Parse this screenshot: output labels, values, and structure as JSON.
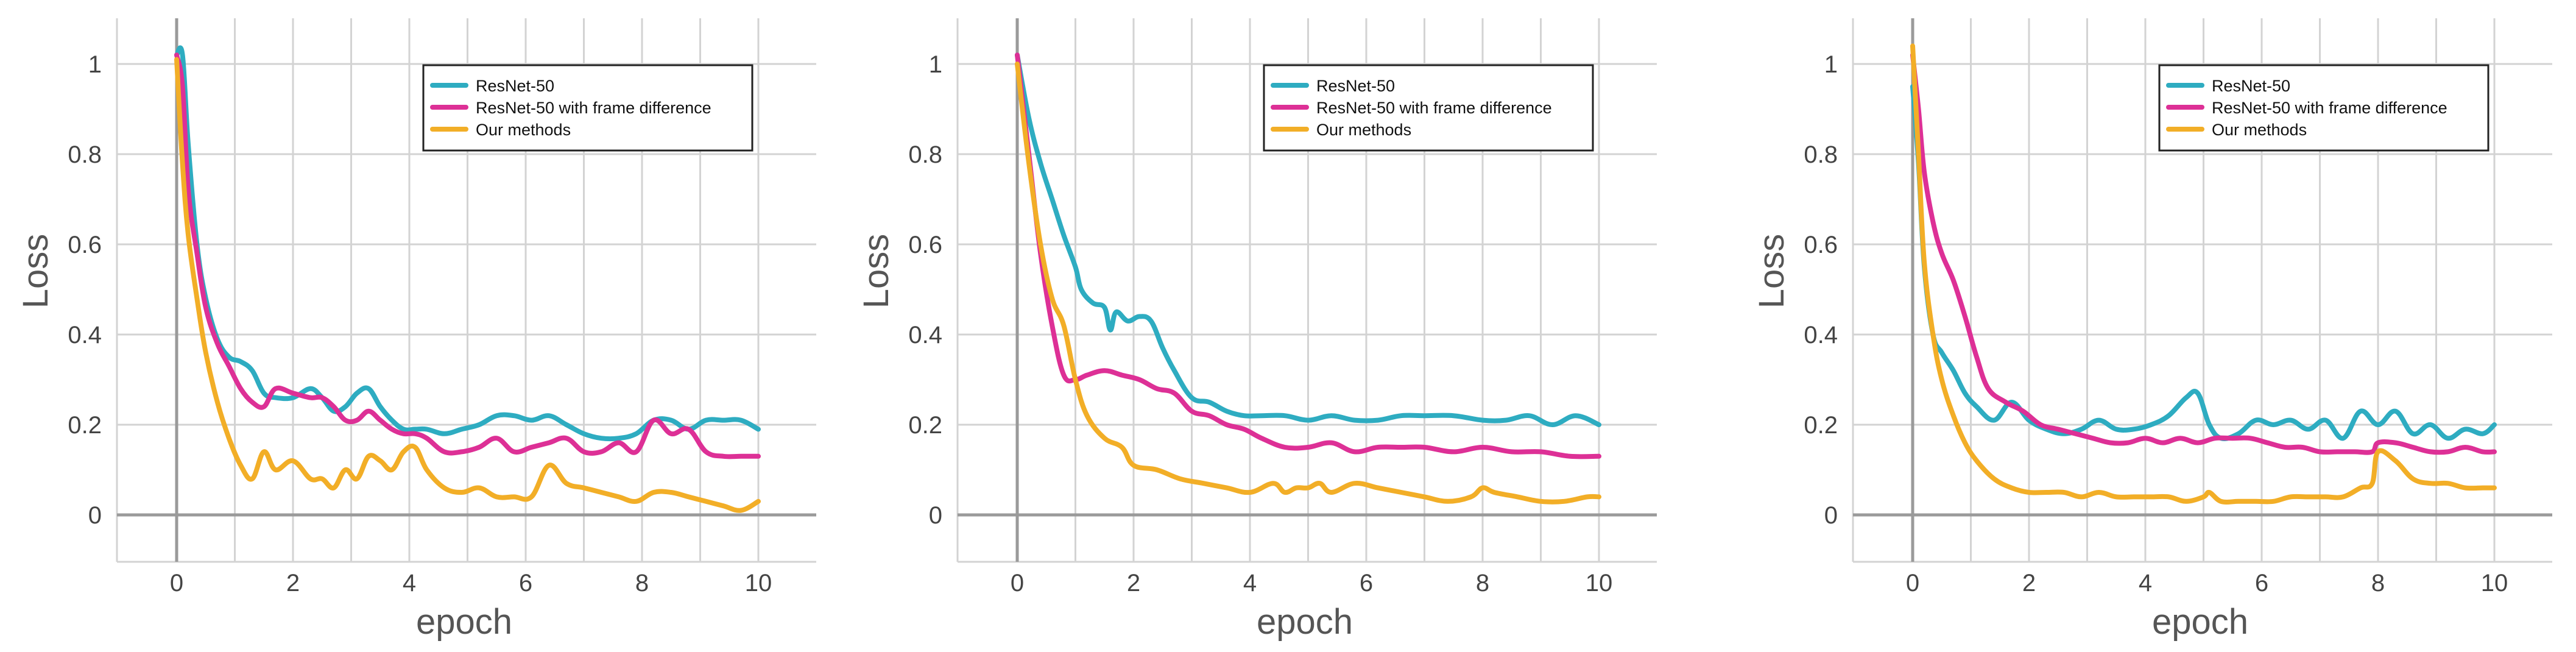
{
  "colors": {
    "ResNet-50": "#2eacc1",
    "ResNet-50 with frame difference": "#dd3096",
    "Our methods": "#f2ae27"
  },
  "chart_data": [
    {
      "type": "line",
      "title": "",
      "xlabel": "epoch",
      "ylabel": "Loss",
      "xlim": [
        -1,
        11
      ],
      "ylim": [
        -0.1,
        1.1
      ],
      "xticks": [
        0,
        2,
        4,
        6,
        8,
        10
      ],
      "yticks": [
        0,
        0.2,
        0.4,
        0.6,
        0.8,
        1
      ],
      "ytick_labels": [
        "0",
        "0.2",
        "0.4",
        "0.6",
        "0.8",
        "1"
      ],
      "legend_position": "top-right",
      "series": [
        {
          "name": "ResNet-50",
          "x": [
            0,
            0.1,
            0.2,
            0.35,
            0.5,
            0.7,
            0.9,
            1.1,
            1.3,
            1.5,
            1.7,
            2.0,
            2.3,
            2.5,
            2.7,
            2.9,
            3.1,
            3.3,
            3.5,
            3.7,
            3.9,
            4.1,
            4.3,
            4.6,
            4.9,
            5.2,
            5.5,
            5.8,
            6.1,
            6.4,
            6.7,
            7.0,
            7.3,
            7.6,
            7.9,
            8.2,
            8.5,
            8.8,
            9.1,
            9.4,
            9.7,
            10.0
          ],
          "y": [
            1.02,
            1.02,
            0.82,
            0.6,
            0.48,
            0.39,
            0.35,
            0.34,
            0.32,
            0.27,
            0.26,
            0.26,
            0.28,
            0.26,
            0.23,
            0.24,
            0.27,
            0.28,
            0.24,
            0.21,
            0.19,
            0.19,
            0.19,
            0.18,
            0.19,
            0.2,
            0.22,
            0.22,
            0.21,
            0.22,
            0.2,
            0.18,
            0.17,
            0.17,
            0.18,
            0.21,
            0.21,
            0.19,
            0.21,
            0.21,
            0.21,
            0.19
          ]
        },
        {
          "name": "ResNet-50 with frame difference",
          "x": [
            0,
            0.1,
            0.2,
            0.35,
            0.5,
            0.7,
            0.9,
            1.1,
            1.3,
            1.5,
            1.7,
            2.0,
            2.3,
            2.5,
            2.7,
            2.9,
            3.1,
            3.3,
            3.5,
            3.7,
            3.9,
            4.1,
            4.3,
            4.6,
            4.9,
            5.2,
            5.5,
            5.8,
            6.1,
            6.4,
            6.7,
            7.0,
            7.3,
            7.6,
            7.9,
            8.2,
            8.5,
            8.8,
            9.1,
            9.4,
            9.7,
            10.0
          ],
          "y": [
            1.02,
            0.95,
            0.72,
            0.58,
            0.46,
            0.38,
            0.33,
            0.28,
            0.25,
            0.24,
            0.28,
            0.27,
            0.26,
            0.26,
            0.24,
            0.21,
            0.21,
            0.23,
            0.21,
            0.19,
            0.18,
            0.18,
            0.17,
            0.14,
            0.14,
            0.15,
            0.17,
            0.14,
            0.15,
            0.16,
            0.17,
            0.14,
            0.14,
            0.16,
            0.14,
            0.21,
            0.18,
            0.19,
            0.14,
            0.13,
            0.13,
            0.13
          ]
        },
        {
          "name": "Our methods",
          "x": [
            0,
            0.1,
            0.2,
            0.35,
            0.5,
            0.7,
            0.9,
            1.1,
            1.3,
            1.5,
            1.7,
            2.0,
            2.3,
            2.5,
            2.7,
            2.9,
            3.1,
            3.3,
            3.5,
            3.7,
            3.9,
            4.1,
            4.3,
            4.6,
            4.9,
            5.2,
            5.5,
            5.8,
            6.1,
            6.4,
            6.7,
            7.0,
            7.3,
            7.6,
            7.9,
            8.2,
            8.5,
            8.8,
            9.1,
            9.4,
            9.7,
            10.0
          ],
          "y": [
            1.01,
            0.78,
            0.62,
            0.48,
            0.36,
            0.25,
            0.17,
            0.11,
            0.08,
            0.14,
            0.1,
            0.12,
            0.08,
            0.08,
            0.06,
            0.1,
            0.08,
            0.13,
            0.12,
            0.1,
            0.14,
            0.15,
            0.1,
            0.06,
            0.05,
            0.06,
            0.04,
            0.04,
            0.04,
            0.11,
            0.07,
            0.06,
            0.05,
            0.04,
            0.03,
            0.05,
            0.05,
            0.04,
            0.03,
            0.02,
            0.01,
            0.03
          ]
        }
      ]
    },
    {
      "type": "line",
      "title": "",
      "xlabel": "epoch",
      "ylabel": "Loss",
      "xlim": [
        -1,
        11
      ],
      "ylim": [
        -0.1,
        1.1
      ],
      "xticks": [
        0,
        2,
        4,
        6,
        8,
        10
      ],
      "yticks": [
        0,
        0.2,
        0.4,
        0.6,
        0.8,
        1
      ],
      "ytick_labels": [
        "0",
        "0.2",
        "0.4",
        "0.6",
        "0.8",
        "1"
      ],
      "legend_position": "top-right",
      "series": [
        {
          "name": "ResNet-50",
          "x": [
            0,
            0.2,
            0.4,
            0.6,
            0.8,
            1.0,
            1.1,
            1.3,
            1.5,
            1.6,
            1.7,
            1.9,
            2.1,
            2.3,
            2.5,
            2.7,
            3.0,
            3.3,
            3.6,
            3.9,
            4.2,
            4.6,
            5.0,
            5.4,
            5.8,
            6.2,
            6.6,
            7.0,
            7.5,
            8.0,
            8.4,
            8.8,
            9.2,
            9.6,
            10.0
          ],
          "y": [
            1.02,
            0.88,
            0.78,
            0.7,
            0.62,
            0.55,
            0.5,
            0.47,
            0.46,
            0.41,
            0.45,
            0.43,
            0.44,
            0.43,
            0.37,
            0.32,
            0.26,
            0.25,
            0.23,
            0.22,
            0.22,
            0.22,
            0.21,
            0.22,
            0.21,
            0.21,
            0.22,
            0.22,
            0.22,
            0.21,
            0.21,
            0.22,
            0.2,
            0.22,
            0.2
          ]
        },
        {
          "name": "ResNet-50 with frame difference",
          "x": [
            0,
            0.2,
            0.4,
            0.6,
            0.8,
            1.0,
            1.2,
            1.5,
            1.8,
            2.1,
            2.4,
            2.7,
            3.0,
            3.3,
            3.6,
            3.9,
            4.2,
            4.6,
            5.0,
            5.4,
            5.8,
            6.2,
            6.6,
            7.0,
            7.5,
            8.0,
            8.5,
            9.0,
            9.5,
            10.0
          ],
          "y": [
            1.02,
            0.8,
            0.58,
            0.42,
            0.31,
            0.3,
            0.31,
            0.32,
            0.31,
            0.3,
            0.28,
            0.27,
            0.23,
            0.22,
            0.2,
            0.19,
            0.17,
            0.15,
            0.15,
            0.16,
            0.14,
            0.15,
            0.15,
            0.15,
            0.14,
            0.15,
            0.14,
            0.14,
            0.13,
            0.13
          ]
        },
        {
          "name": "Our methods",
          "x": [
            0,
            0.2,
            0.4,
            0.6,
            0.8,
            1.0,
            1.2,
            1.5,
            1.8,
            2.0,
            2.4,
            2.8,
            3.2,
            3.6,
            4.0,
            4.4,
            4.6,
            4.8,
            5.0,
            5.2,
            5.4,
            5.8,
            6.2,
            6.6,
            7.0,
            7.4,
            7.8,
            8.0,
            8.2,
            8.6,
            9.0,
            9.4,
            9.8,
            10.0
          ],
          "y": [
            1.0,
            0.78,
            0.6,
            0.48,
            0.42,
            0.3,
            0.22,
            0.17,
            0.15,
            0.11,
            0.1,
            0.08,
            0.07,
            0.06,
            0.05,
            0.07,
            0.05,
            0.06,
            0.06,
            0.07,
            0.05,
            0.07,
            0.06,
            0.05,
            0.04,
            0.03,
            0.04,
            0.06,
            0.05,
            0.04,
            0.03,
            0.03,
            0.04,
            0.04
          ]
        }
      ]
    },
    {
      "type": "line",
      "title": "",
      "xlabel": "epoch",
      "ylabel": "Loss",
      "xlim": [
        -1,
        11
      ],
      "ylim": [
        -0.1,
        1.1
      ],
      "xticks": [
        0,
        2,
        4,
        6,
        8,
        10
      ],
      "yticks": [
        0,
        0.2,
        0.4,
        0.6,
        0.8,
        1
      ],
      "ytick_labels": [
        "0",
        "0.2",
        "0.4",
        "0.6",
        "0.8",
        "1"
      ],
      "legend_position": "top-right",
      "series": [
        {
          "name": "ResNet-50",
          "x": [
            0,
            0.1,
            0.2,
            0.35,
            0.5,
            0.7,
            0.9,
            1.1,
            1.4,
            1.7,
            2.0,
            2.3,
            2.6,
            2.9,
            3.2,
            3.5,
            3.8,
            4.1,
            4.4,
            4.7,
            4.9,
            5.1,
            5.3,
            5.6,
            5.9,
            6.2,
            6.5,
            6.8,
            7.1,
            7.4,
            7.7,
            8.0,
            8.3,
            8.6,
            8.9,
            9.2,
            9.5,
            9.8,
            10.0
          ],
          "y": [
            0.95,
            0.78,
            0.55,
            0.4,
            0.36,
            0.32,
            0.27,
            0.24,
            0.21,
            0.25,
            0.21,
            0.19,
            0.18,
            0.19,
            0.21,
            0.19,
            0.19,
            0.2,
            0.22,
            0.26,
            0.27,
            0.2,
            0.17,
            0.18,
            0.21,
            0.2,
            0.21,
            0.19,
            0.21,
            0.17,
            0.23,
            0.2,
            0.23,
            0.18,
            0.2,
            0.17,
            0.19,
            0.18,
            0.2
          ]
        },
        {
          "name": "ResNet-50 with frame difference",
          "x": [
            0,
            0.1,
            0.2,
            0.35,
            0.5,
            0.7,
            0.9,
            1.1,
            1.3,
            1.6,
            1.9,
            2.2,
            2.5,
            2.8,
            3.1,
            3.4,
            3.7,
            4.0,
            4.3,
            4.6,
            4.9,
            5.2,
            5.5,
            5.8,
            6.1,
            6.4,
            6.7,
            7.0,
            7.3,
            7.6,
            7.9,
            8.0,
            8.3,
            8.6,
            8.9,
            9.2,
            9.5,
            9.8,
            10.0
          ],
          "y": [
            1.02,
            0.9,
            0.76,
            0.65,
            0.58,
            0.52,
            0.44,
            0.35,
            0.28,
            0.25,
            0.23,
            0.2,
            0.19,
            0.18,
            0.17,
            0.16,
            0.16,
            0.17,
            0.16,
            0.17,
            0.16,
            0.17,
            0.17,
            0.17,
            0.16,
            0.15,
            0.15,
            0.14,
            0.14,
            0.14,
            0.14,
            0.16,
            0.16,
            0.15,
            0.14,
            0.14,
            0.15,
            0.14,
            0.14
          ]
        },
        {
          "name": "Our methods",
          "x": [
            0,
            0.1,
            0.2,
            0.35,
            0.5,
            0.7,
            0.9,
            1.1,
            1.4,
            1.7,
            2.0,
            2.3,
            2.6,
            2.9,
            3.2,
            3.5,
            3.8,
            4.1,
            4.4,
            4.7,
            5.0,
            5.1,
            5.3,
            5.6,
            5.9,
            6.2,
            6.5,
            6.8,
            7.1,
            7.4,
            7.7,
            7.9,
            8.0,
            8.3,
            8.6,
            8.9,
            9.2,
            9.5,
            9.8,
            10.0
          ],
          "y": [
            1.04,
            0.8,
            0.56,
            0.4,
            0.3,
            0.22,
            0.16,
            0.12,
            0.08,
            0.06,
            0.05,
            0.05,
            0.05,
            0.04,
            0.05,
            0.04,
            0.04,
            0.04,
            0.04,
            0.03,
            0.04,
            0.05,
            0.03,
            0.03,
            0.03,
            0.03,
            0.04,
            0.04,
            0.04,
            0.04,
            0.06,
            0.07,
            0.14,
            0.12,
            0.08,
            0.07,
            0.07,
            0.06,
            0.06,
            0.06
          ]
        }
      ]
    }
  ]
}
